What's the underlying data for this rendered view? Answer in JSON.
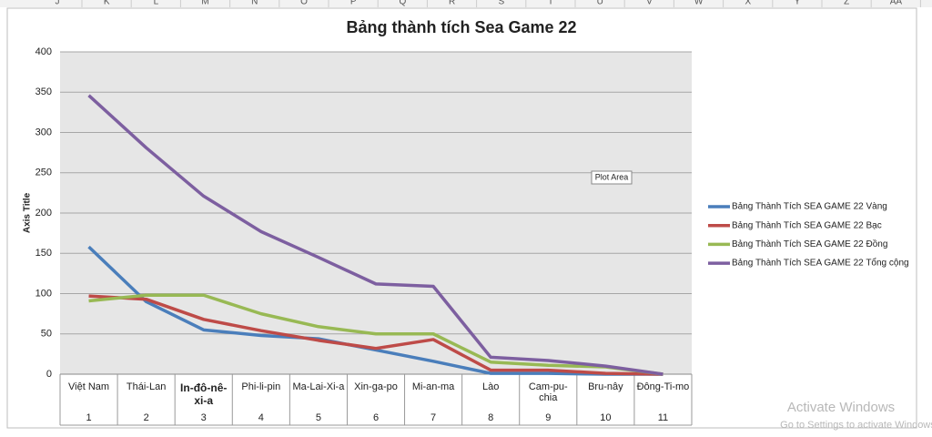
{
  "sheet": {
    "columns": [
      "J",
      "K",
      "L",
      "M",
      "N",
      "O",
      "P",
      "Q",
      "R",
      "S",
      "T",
      "U",
      "V",
      "W",
      "X",
      "Y",
      "Z",
      "AA"
    ]
  },
  "chart_data": {
    "type": "line",
    "title": "Bảng thành tích Sea Game 22",
    "y_label": "Axis Title",
    "annotation": "Plot Area",
    "categories": [
      "Việt Nam",
      "Thái-Lan",
      "In-đô-nê-xi-a",
      "Phi-li-pin",
      "Ma-Lai-Xi-a",
      "Xin-ga-po",
      "Mi-an-ma",
      "Lào",
      "Cam-pu-chia",
      "Bru-nây",
      "Đông-Ti-mo"
    ],
    "category_numbers": [
      1,
      2,
      3,
      4,
      5,
      6,
      7,
      8,
      9,
      10,
      11
    ],
    "series": [
      {
        "name": "Bảng Thành Tích SEA GAME 22 Vàng",
        "color": "#4a7ebb",
        "values": [
          158,
          90,
          55,
          48,
          44,
          30,
          16,
          1,
          1,
          0,
          0
        ]
      },
      {
        "name": "Bảng Thành Tích SEA GAME 22 Bạc",
        "color": "#be4b48",
        "values": [
          97,
          93,
          68,
          54,
          42,
          32,
          43,
          5,
          5,
          1,
          0
        ]
      },
      {
        "name": "Bảng Thành Tích SEA GAME 22 Đồng",
        "color": "#98b954",
        "values": [
          91,
          98,
          98,
          75,
          59,
          50,
          50,
          15,
          11,
          9,
          0
        ]
      },
      {
        "name": "Bảng Thành Tích SEA GAME 22 Tổng cộng",
        "color": "#7d5fa0",
        "values": [
          346,
          281,
          221,
          177,
          145,
          112,
          109,
          21,
          17,
          10,
          0
        ]
      }
    ],
    "ylim": [
      0,
      400
    ],
    "yticks": [
      0,
      50,
      100,
      150,
      200,
      250,
      300,
      350,
      400
    ],
    "grid": true,
    "legend": "right"
  },
  "watermark": {
    "title": "Activate Windows",
    "subtitle": "Go to Settings to activate Windows."
  }
}
